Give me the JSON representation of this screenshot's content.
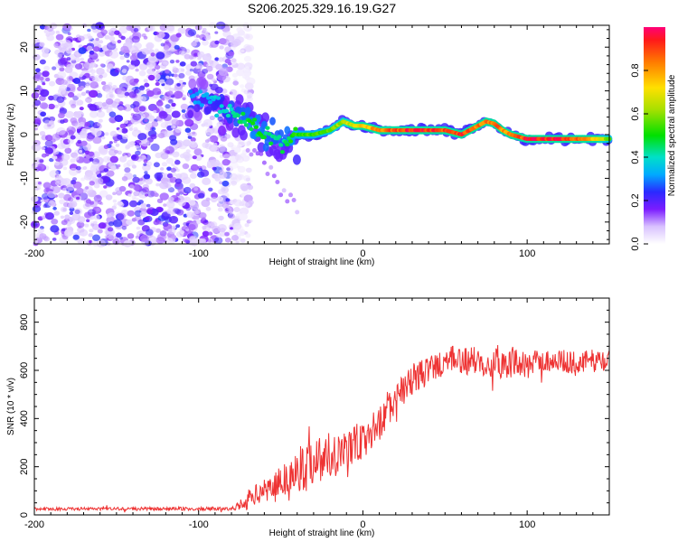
{
  "title": "S206.2025.329.16.19.G27",
  "chart_data": [
    {
      "type": "heatmap",
      "name": "spectrogram",
      "xlabel": "Height of straight line (km)",
      "ylabel": "Frequency (Hz)",
      "xlim": [
        -200,
        150
      ],
      "ylim": [
        -25,
        25
      ],
      "xticks": [
        -200,
        -100,
        0,
        100
      ],
      "yticks": [
        20,
        10,
        0,
        -10,
        -20
      ],
      "noise_region_x": [
        -200,
        -80
      ],
      "ridge": {
        "x": [
          -105,
          -95,
          -85,
          -75,
          -65,
          -55,
          -48,
          -40,
          -30,
          -20,
          -12,
          -5,
          0,
          10,
          20,
          30,
          40,
          50,
          60,
          65,
          70,
          75,
          80,
          85,
          90,
          100,
          110,
          120,
          130,
          140,
          150
        ],
        "y": [
          9,
          7,
          6,
          4,
          2,
          -1,
          -2,
          0,
          0,
          1,
          3,
          2,
          2,
          1,
          1,
          1,
          1,
          1,
          0,
          1,
          2,
          3,
          2.5,
          1,
          0,
          -1,
          -1,
          -1,
          -1,
          -1,
          -1
        ],
        "amplitude": [
          0.3,
          0.35,
          0.4,
          0.45,
          0.5,
          0.45,
          0.45,
          0.55,
          0.55,
          0.6,
          0.65,
          0.7,
          0.75,
          0.85,
          0.9,
          0.95,
          0.95,
          0.9,
          0.95,
          0.9,
          0.85,
          0.85,
          0.9,
          0.85,
          0.8,
          0.95,
          0.95,
          0.95,
          0.9,
          0.75,
          0.6
        ]
      }
    },
    {
      "type": "colorbar",
      "name": "colorbar",
      "label": "Normalized spectral amplitude",
      "range": [
        0.0,
        1.0
      ],
      "ticks": [
        0.0,
        0.2,
        0.4,
        0.6,
        0.8
      ],
      "tick_labels": [
        "0.0",
        "0.2",
        "0.4",
        "0.6",
        "0.8"
      ]
    },
    {
      "type": "line",
      "name": "snr",
      "xlabel": "Height of straight line (km)",
      "ylabel": "SNR (10 * v/v)",
      "xlim": [
        -200,
        150
      ],
      "ylim": [
        0,
        900
      ],
      "xticks": [
        -200,
        -100,
        0,
        100
      ],
      "yticks": [
        0,
        200,
        400,
        600,
        800
      ],
      "color": "#ee3333",
      "envelope": {
        "x": [
          -200,
          -150,
          -100,
          -80,
          -75,
          -70,
          -60,
          -50,
          -40,
          -30,
          -20,
          -10,
          0,
          10,
          20,
          30,
          40,
          50,
          60,
          70,
          80,
          90,
          100,
          110,
          120,
          130,
          140,
          150
        ],
        "mean": [
          25,
          25,
          25,
          25,
          40,
          70,
          100,
          140,
          180,
          230,
          250,
          280,
          300,
          380,
          480,
          560,
          600,
          640,
          640,
          640,
          640,
          630,
          620,
          640,
          640,
          630,
          640,
          640
        ],
        "spread": [
          10,
          12,
          12,
          12,
          30,
          60,
          80,
          120,
          160,
          170,
          170,
          160,
          140,
          120,
          110,
          110,
          100,
          100,
          100,
          100,
          130,
          100,
          100,
          80,
          80,
          80,
          80,
          70
        ]
      }
    }
  ]
}
